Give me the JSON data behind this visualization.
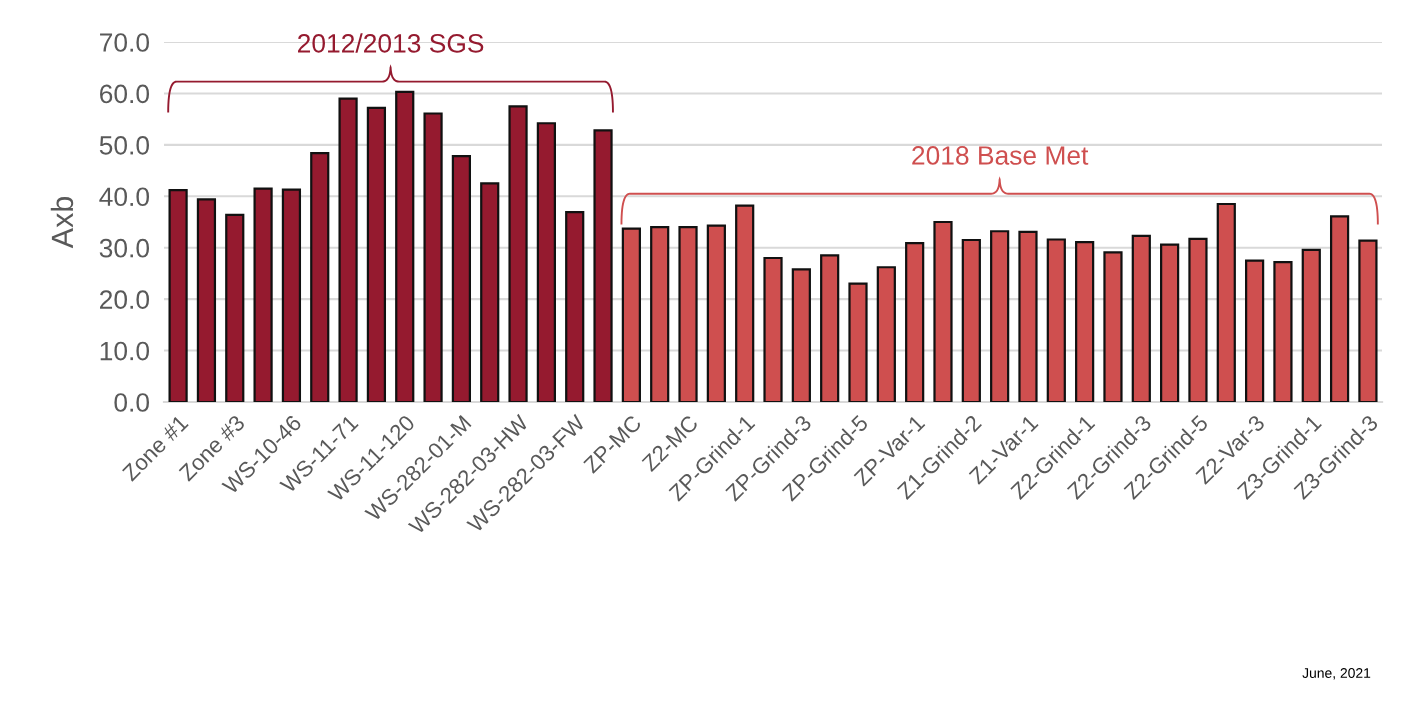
{
  "chart_data": {
    "type": "bar",
    "ylabel": "Axb",
    "ylim": [
      0,
      70
    ],
    "yticks": [
      {
        "value": 0,
        "label": "0.0"
      },
      {
        "value": 10,
        "label": "10.0"
      },
      {
        "value": 20,
        "label": "20.0"
      },
      {
        "value": 30,
        "label": "30.0"
      },
      {
        "value": 40,
        "label": "40.0"
      },
      {
        "value": 50,
        "label": "50.0"
      },
      {
        "value": 60,
        "label": "60.0"
      },
      {
        "value": 70,
        "label": "70.0"
      }
    ],
    "grid": "y",
    "categories": [
      "Zone #1",
      null,
      "Zone #3",
      null,
      "WS-10-46",
      null,
      "WS-11-71",
      null,
      "WS-11-120",
      null,
      "WS-282-01-M",
      null,
      "WS-282-03-HW",
      null,
      "WS-282-03-FW",
      null,
      "ZP-MC",
      null,
      "Z2-MC",
      null,
      "ZP-Grind-1",
      null,
      "ZP-Grind-3",
      null,
      "ZP-Grind-5",
      null,
      "ZP-Var-1",
      null,
      "Z1-Grind-2",
      null,
      "Z1-Var-1",
      null,
      "Z2-Grind-1",
      null,
      "Z2-Grind-3",
      null,
      "Z2-Grind-5",
      null,
      "Z2-Var-3",
      null,
      "Z3-Grind-1",
      null,
      "Z3-Grind-3"
    ],
    "series": [
      {
        "name": "2012/2013 SGS",
        "color": "#951a2f",
        "values": [
          41.2,
          39.4,
          36.4,
          41.5,
          41.3,
          48.4,
          59.0,
          57.2,
          60.3,
          56.1,
          47.8,
          42.5,
          57.5,
          54.2,
          36.9,
          52.8,
          null,
          null,
          null,
          null,
          null,
          null,
          null,
          null,
          null,
          null,
          null,
          null,
          null,
          null,
          null,
          null,
          null,
          null,
          null,
          null,
          null,
          null,
          null,
          null,
          null,
          null,
          null
        ]
      },
      {
        "name": "2018 Base Met",
        "color": "#cf4f4f",
        "values": [
          null,
          null,
          null,
          null,
          null,
          null,
          null,
          null,
          null,
          null,
          null,
          null,
          null,
          null,
          null,
          null,
          33.7,
          34.0,
          34.0,
          34.3,
          38.2,
          28.0,
          25.8,
          28.5,
          23.0,
          26.2,
          30.9,
          35.0,
          31.5,
          33.2,
          33.1,
          31.6,
          31.1,
          29.1,
          32.3,
          30.6,
          31.7,
          38.5,
          27.5,
          27.2,
          29.6,
          36.1,
          31.4
        ]
      }
    ],
    "annotations": [
      "June, 2021"
    ]
  }
}
